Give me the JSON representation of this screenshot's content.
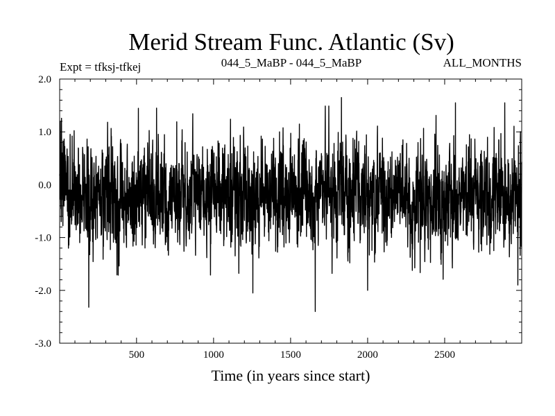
{
  "chart_data": {
    "type": "line",
    "title": "Merid Stream Func. Atlantic (Sv)",
    "subtitle_left": "Expt = tfksj-tfkej",
    "subtitle_center": "044_5_MaBP - 044_5_MaBP",
    "subtitle_right": "ALL_MONTHS",
    "xlabel": "Time (in years since start)",
    "ylabel": "",
    "xlim": [
      1,
      3000
    ],
    "ylim": [
      -3.0,
      2.0
    ],
    "x_ticks": [
      500,
      1000,
      1500,
      2000,
      2500
    ],
    "x_tick_labels": [
      "500",
      "1000",
      "1500",
      "2000",
      "2500"
    ],
    "y_ticks": [
      2.0,
      1.0,
      0.0,
      -1.0,
      -2.0,
      -3.0
    ],
    "y_tick_labels": [
      "2.0",
      "1.0",
      "0.0",
      "-1.0",
      "-2.0",
      "-3.0"
    ],
    "grid": false,
    "line_color": "#000000",
    "series": [
      {
        "name": "Merid Stream Func. Atlantic",
        "n_points": 3000,
        "mean": -0.2,
        "typical_min": -1.4,
        "typical_max": 1.0,
        "peaks": [
          {
            "x": 5,
            "y": 1.2
          },
          {
            "x": 190,
            "y": -2.32
          },
          {
            "x": 630,
            "y": 1.45
          },
          {
            "x": 1255,
            "y": -2.05
          },
          {
            "x": 1660,
            "y": -2.4
          },
          {
            "x": 1830,
            "y": 1.65
          },
          {
            "x": 2000,
            "y": -2.0
          },
          {
            "x": 2570,
            "y": 1.55
          },
          {
            "x": 2975,
            "y": -1.9
          }
        ]
      }
    ]
  }
}
